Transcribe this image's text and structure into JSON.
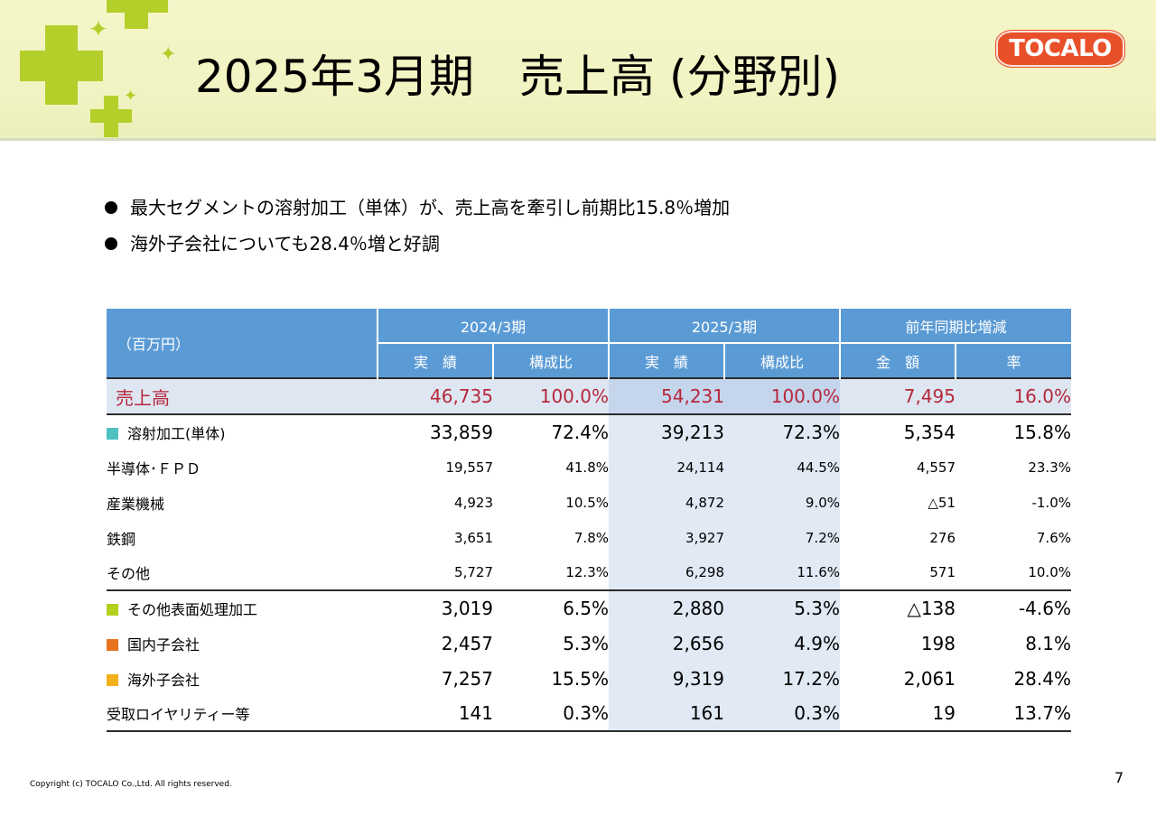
{
  "slide": {
    "title": "2025年3月期　売上高 (分野別)",
    "logo_text": "TOCALO",
    "bullets": [
      "最大セグメントの溶射加工（単体）が、売上高を牽引し前期比15.8％増加",
      "海外子会社についても28.4％増と好調"
    ],
    "footer": "Copyright (c) TOCALO Co.,Ltd. All rights reserved.",
    "page_number": "7",
    "colors": {
      "accent_green": "#b5cf2a",
      "header_blue": "#5b9bd5",
      "total_red": "#b5283a",
      "logo_orange": "#e8502a"
    }
  },
  "table": {
    "unit": "（百万円）",
    "period_headers": [
      "2024/3期",
      "2025/3期",
      "前年同期比増減"
    ],
    "sub_headers": [
      "実　績",
      "構成比",
      "実　績",
      "構成比",
      "金　額",
      "率"
    ],
    "total": {
      "label": "売上高",
      "values": [
        "46,735",
        "100.0%",
        "54,231",
        "100.0%",
        "7,495",
        "16.0%"
      ]
    },
    "rows": [
      {
        "label": "溶射加工(単体)",
        "marker": "#4fc1c2",
        "values": [
          "33,859",
          "72.4%",
          "39,213",
          "72.3%",
          "5,354",
          "15.8%"
        ]
      },
      {
        "label": "半導体･ＦＰＤ",
        "values": [
          "19,557",
          "41.8%",
          "24,114",
          "44.5%",
          "4,557",
          "23.3%"
        ]
      },
      {
        "label": "産業機械",
        "values": [
          "4,923",
          "10.5%",
          "4,872",
          "9.0%",
          "△51",
          "-1.0%"
        ]
      },
      {
        "label": "鉄鋼",
        "values": [
          "3,651",
          "7.8%",
          "3,927",
          "7.2%",
          "276",
          "7.6%"
        ]
      },
      {
        "label": "その他",
        "values": [
          "5,727",
          "12.3%",
          "6,298",
          "11.6%",
          "571",
          "10.0%"
        ]
      },
      {
        "label": "その他表面処理加工",
        "marker": "#b5cf1d",
        "values": [
          "3,019",
          "6.5%",
          "2,880",
          "5.3%",
          "△138",
          "-4.6%"
        ]
      },
      {
        "label": "国内子会社",
        "marker": "#e8731e",
        "values": [
          "2,457",
          "5.3%",
          "2,656",
          "4.9%",
          "198",
          "8.1%"
        ]
      },
      {
        "label": "海外子会社",
        "marker": "#f2b01a",
        "values": [
          "7,257",
          "15.5%",
          "9,319",
          "17.2%",
          "2,061",
          "28.4%"
        ]
      },
      {
        "label": "受取ロイヤリティー等",
        "values": [
          "141",
          "0.3%",
          "161",
          "0.3%",
          "19",
          "13.7%"
        ]
      }
    ]
  }
}
